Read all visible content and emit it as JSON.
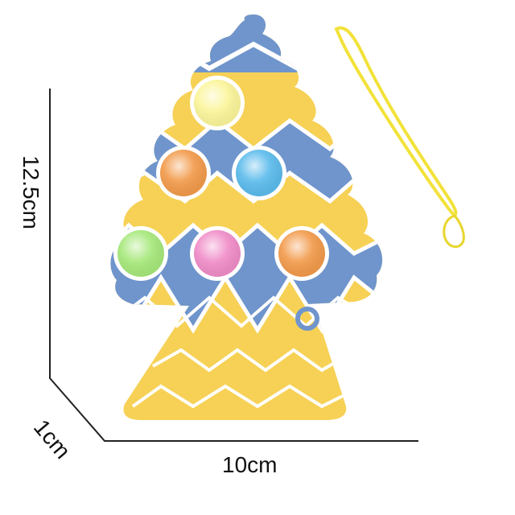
{
  "product": {
    "dimensions": {
      "height": "12.5cm",
      "depth": "1cm",
      "width": "10cm"
    },
    "colors": {
      "blue": "#6f95cc",
      "yellow": "#f6d155",
      "lanyard": "#f2e23a"
    },
    "bubbles": [
      {
        "color": "#fbf59a"
      },
      {
        "color": "#f29a4a"
      },
      {
        "color": "#5bbbec"
      },
      {
        "color": "#a6e87a"
      },
      {
        "color": "#f08cc8"
      },
      {
        "color": "#f29a4a"
      }
    ]
  }
}
